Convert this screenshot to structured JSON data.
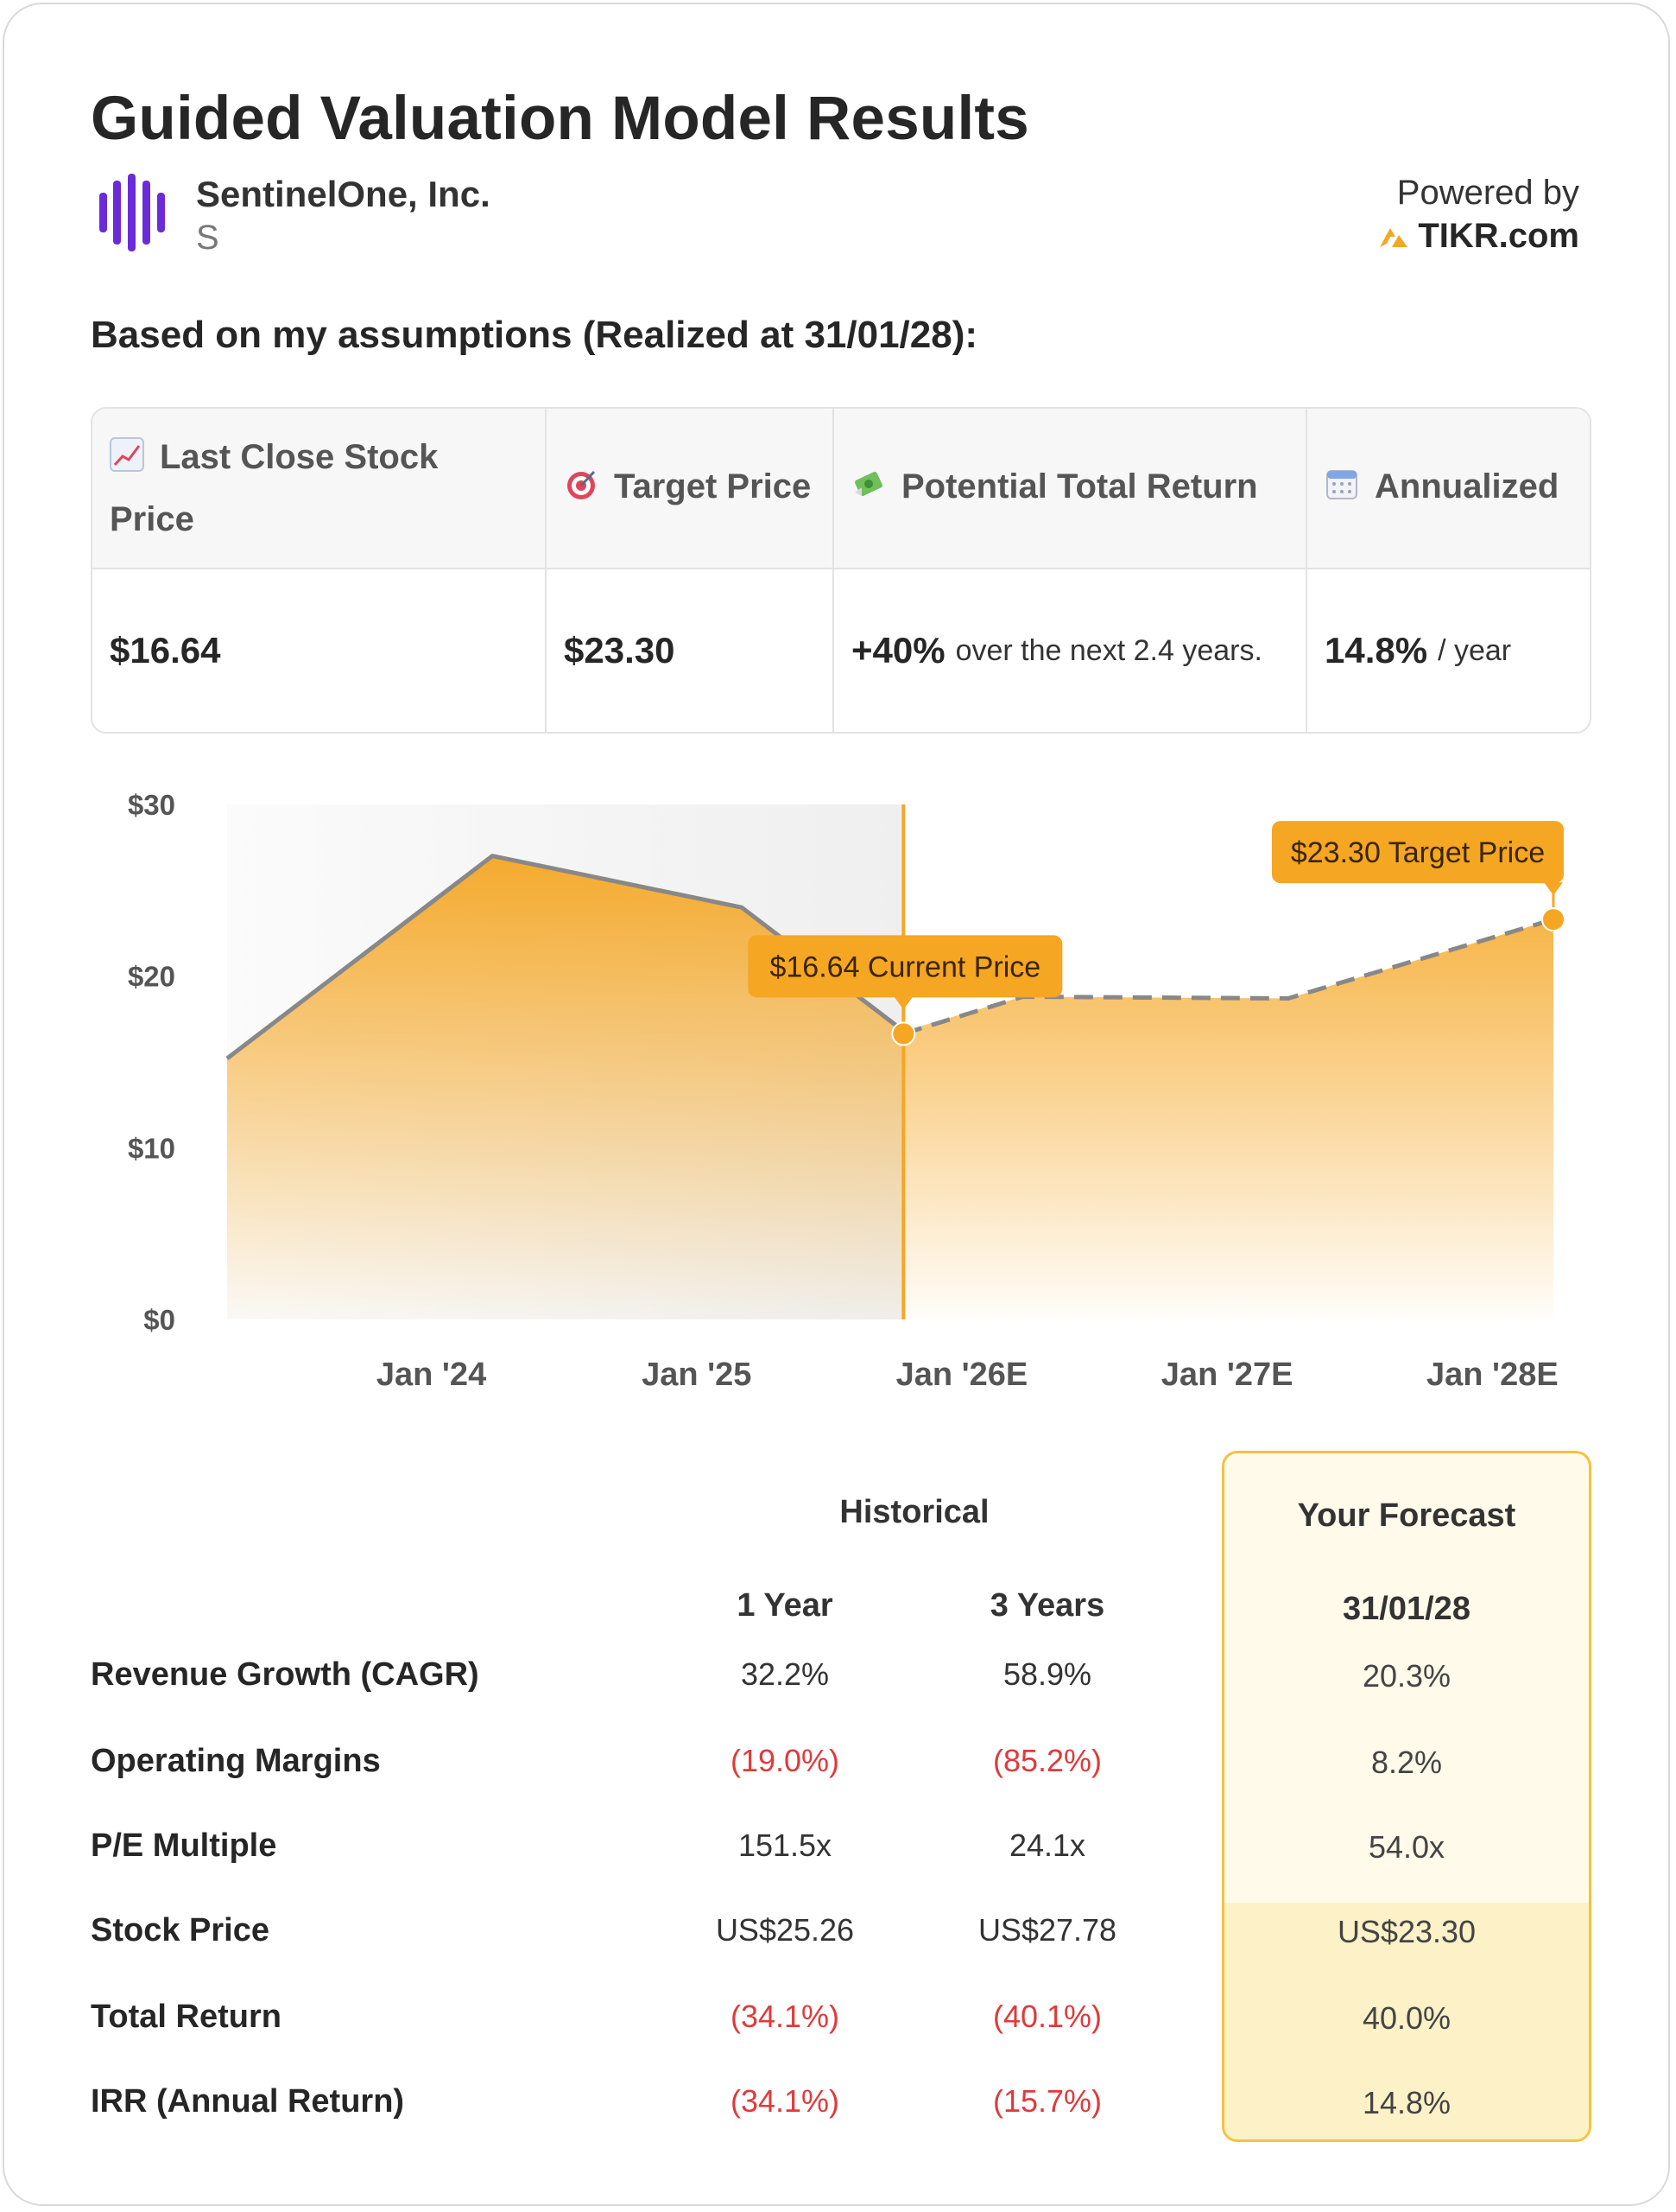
{
  "header": {
    "title": "Guided Valuation Model Results",
    "company_name": "SentinelOne, Inc.",
    "ticker": "S",
    "powered_by": "Powered by",
    "brand": "TIKR.com",
    "brand_color": "#f5a623",
    "logo_color": "#6b2bd9"
  },
  "assumptions_heading": "Based on my assumptions (Realized at 31/01/28):",
  "summary": {
    "columns": [
      {
        "icon": "chart-increasing-icon",
        "label": "Last Close Stock Price",
        "value": "$16.64",
        "suffix": ""
      },
      {
        "icon": "target-icon",
        "label": "Target Price",
        "value": "$23.30",
        "suffix": ""
      },
      {
        "icon": "money-with-wings-icon",
        "label": "Potential Total Return",
        "value": "+40%",
        "suffix": "over the next 2.4 years."
      },
      {
        "icon": "calendar-icon",
        "label": "Annualized",
        "value": "14.8%",
        "suffix": "/ year"
      }
    ]
  },
  "chart_data": {
    "type": "area",
    "title": "",
    "xlabel": "",
    "ylabel": "",
    "ylim": [
      0,
      30
    ],
    "y_ticks": [
      "$30",
      "$20",
      "$10",
      "$0"
    ],
    "y_tick_values": [
      30,
      20,
      10,
      0
    ],
    "x_ticks": [
      "Jan '24",
      "Jan '25",
      "Jan '26E",
      "Jan '27E",
      "Jan '28E"
    ],
    "x_tick_positions": [
      2024.0,
      2025.0,
      2026.0,
      2027.0,
      2028.0
    ],
    "x_range": [
      2023.23,
      2028.23
    ],
    "series": [
      {
        "name": "Historical",
        "style": "solid",
        "x": [
          2023.23,
          2024.23,
          2025.17,
          2025.78
        ],
        "y": [
          15.2,
          27.0,
          24.0,
          16.8
        ]
      },
      {
        "name": "Forecast",
        "style": "dashed",
        "x": [
          2025.78,
          2026.23,
          2027.23,
          2028.23
        ],
        "y": [
          16.64,
          18.8,
          18.7,
          23.3
        ]
      }
    ],
    "annotations": [
      {
        "label": "$16.64 Current Price",
        "x": 2025.78,
        "y": 16.64
      },
      {
        "label": "$23.30 Target Price",
        "x": 2028.23,
        "y": 23.3
      }
    ],
    "current_x": 2025.78,
    "accent_color": "#f5a623",
    "line_color": "#888888"
  },
  "metrics": {
    "historical_header": "Historical",
    "forecast_header": "Your Forecast",
    "col_1y": "1 Year",
    "col_3y": "3 Years",
    "col_fc_date": "31/01/28",
    "rows": [
      {
        "label": "Revenue Growth (CAGR)",
        "y1": "32.2%",
        "y3": "58.9%",
        "fc": "20.3%",
        "y1_neg": false,
        "y3_neg": false
      },
      {
        "label": "Operating Margins",
        "y1": "(19.0%)",
        "y3": "(85.2%)",
        "fc": "8.2%",
        "y1_neg": true,
        "y3_neg": true
      },
      {
        "label": "P/E Multiple",
        "y1": "151.5x",
        "y3": "24.1x",
        "fc": "54.0x",
        "y1_neg": false,
        "y3_neg": false
      },
      {
        "label": "Stock Price",
        "y1": "US$25.26",
        "y3": "US$27.78",
        "fc": "US$23.30",
        "y1_neg": false,
        "y3_neg": false
      },
      {
        "label": "Total Return",
        "y1": "(34.1%)",
        "y3": "(40.1%)",
        "fc": "40.0%",
        "y1_neg": true,
        "y3_neg": true
      },
      {
        "label": "IRR (Annual Return)",
        "y1": "(34.1%)",
        "y3": "(15.7%)",
        "fc": "14.8%",
        "y1_neg": true,
        "y3_neg": true
      }
    ]
  }
}
